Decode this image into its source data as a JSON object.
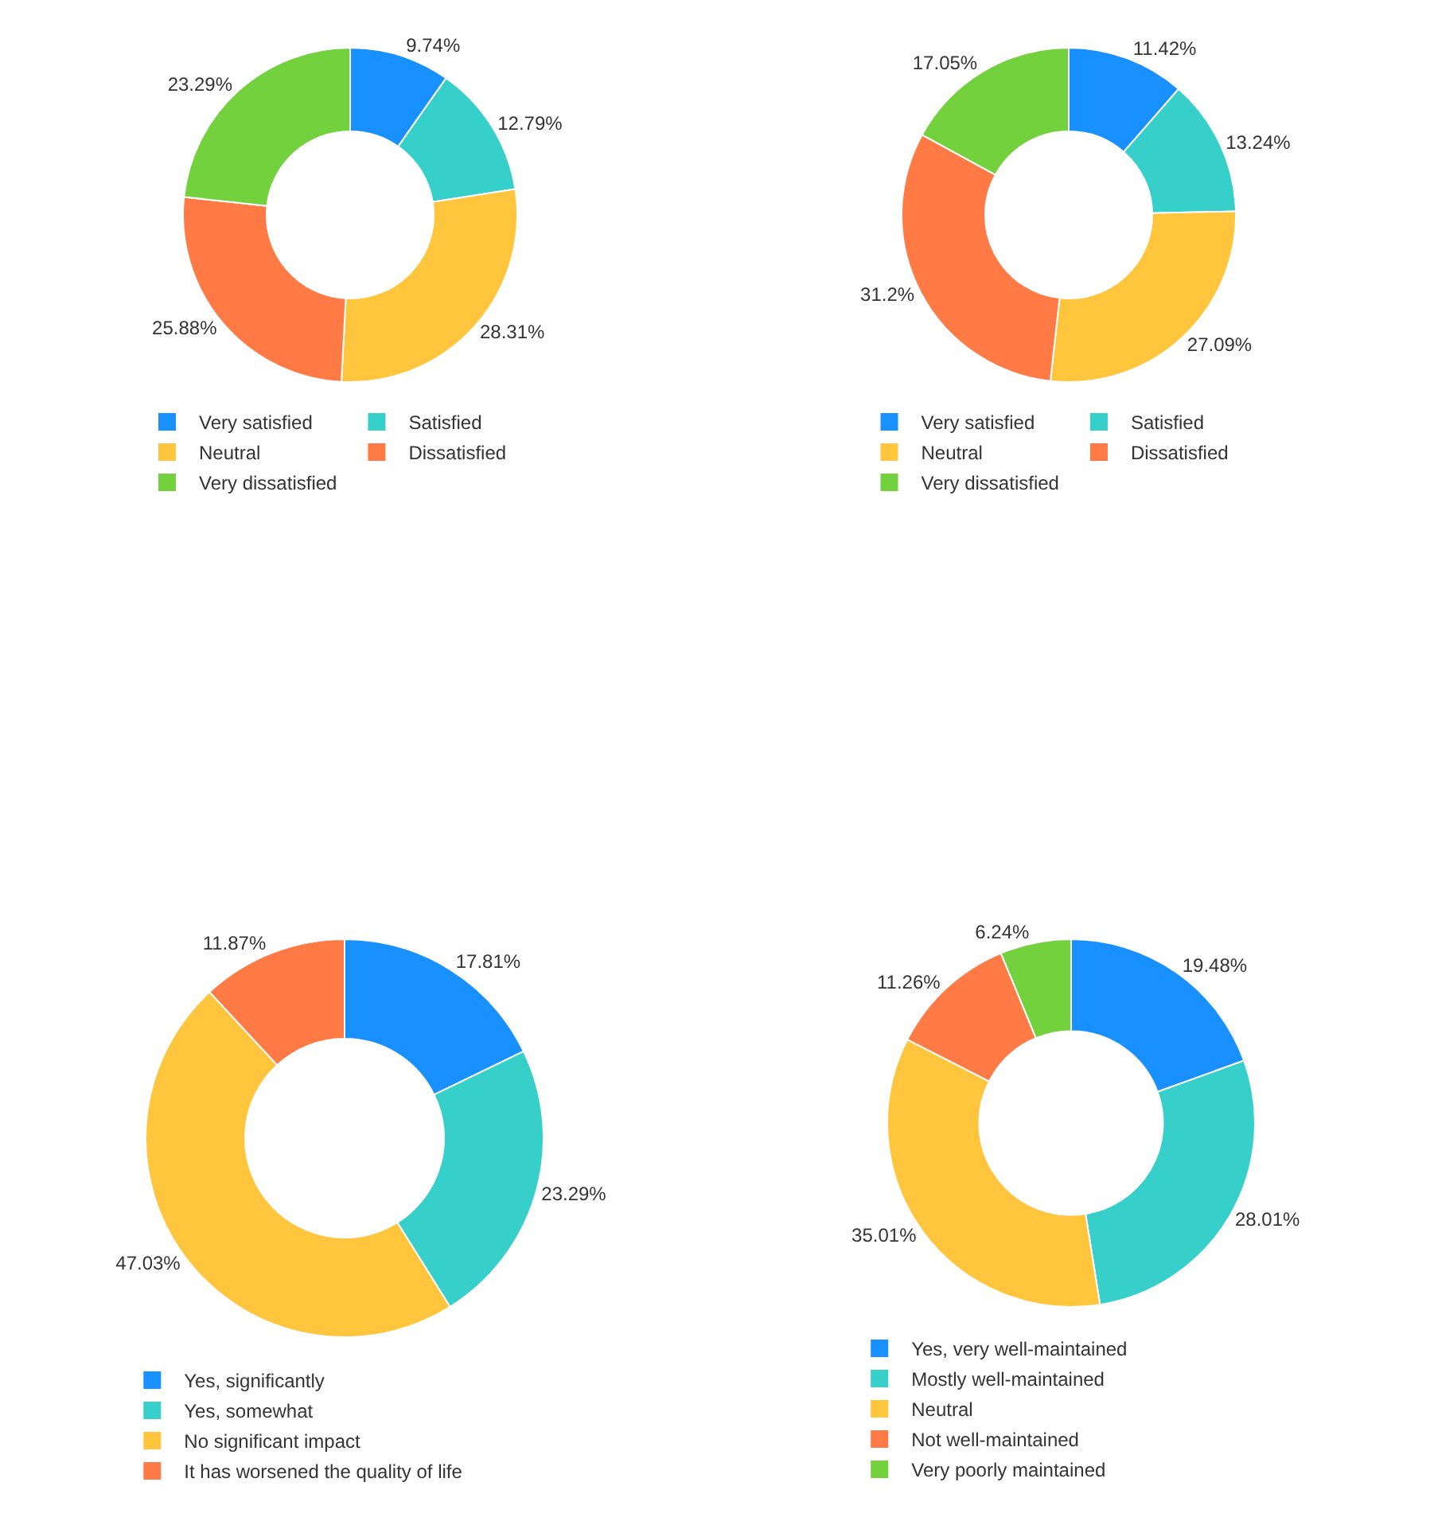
{
  "chart_data": [
    {
      "type": "donut",
      "categories": [
        "Very satisfied",
        "Satisfied",
        "Neutral",
        "Dissatisfied",
        "Very dissatisfied"
      ],
      "values": [
        9.74,
        12.79,
        28.31,
        25.88,
        23.29
      ],
      "value_labels": [
        "9.74%",
        "12.79%",
        "28.31%",
        "25.88%",
        "23.29%"
      ],
      "colors": [
        "#1890ff",
        "#36cfc9",
        "#ffc53d",
        "#ff7a45",
        "#73d13d"
      ],
      "legend": "bottom"
    },
    {
      "type": "donut",
      "categories": [
        "Very satisfied",
        "Satisfied",
        "Neutral",
        "Dissatisfied",
        "Very dissatisfied"
      ],
      "values": [
        11.42,
        13.24,
        27.09,
        31.2,
        17.05
      ],
      "value_labels": [
        "11.42%",
        "13.24%",
        "27.09%",
        "31.2%",
        "17.05%"
      ],
      "colors": [
        "#1890ff",
        "#36cfc9",
        "#ffc53d",
        "#ff7a45",
        "#73d13d"
      ],
      "legend": "bottom"
    },
    {
      "type": "donut",
      "categories": [
        "Yes, significantly",
        "Yes, somewhat",
        "No significant impact",
        "It has worsened the quality of life"
      ],
      "values": [
        17.81,
        23.29,
        47.03,
        11.87
      ],
      "value_labels": [
        "17.81%",
        "23.29%",
        "47.03%",
        "11.87%"
      ],
      "colors": [
        "#1890ff",
        "#36cfc9",
        "#ffc53d",
        "#ff7a45"
      ],
      "legend": "bottom"
    },
    {
      "type": "donut",
      "categories": [
        "Yes, very well-maintained",
        "Mostly well-maintained",
        "Neutral",
        "Not well-maintained",
        "Very poorly maintained"
      ],
      "values": [
        19.48,
        28.01,
        35.01,
        11.26,
        6.24
      ],
      "value_labels": [
        "19.48%",
        "28.01%",
        "35.01%",
        "11.26%",
        "6.24%"
      ],
      "colors": [
        "#1890ff",
        "#36cfc9",
        "#ffc53d",
        "#ff7a45",
        "#73d13d"
      ],
      "legend": "bottom"
    }
  ]
}
